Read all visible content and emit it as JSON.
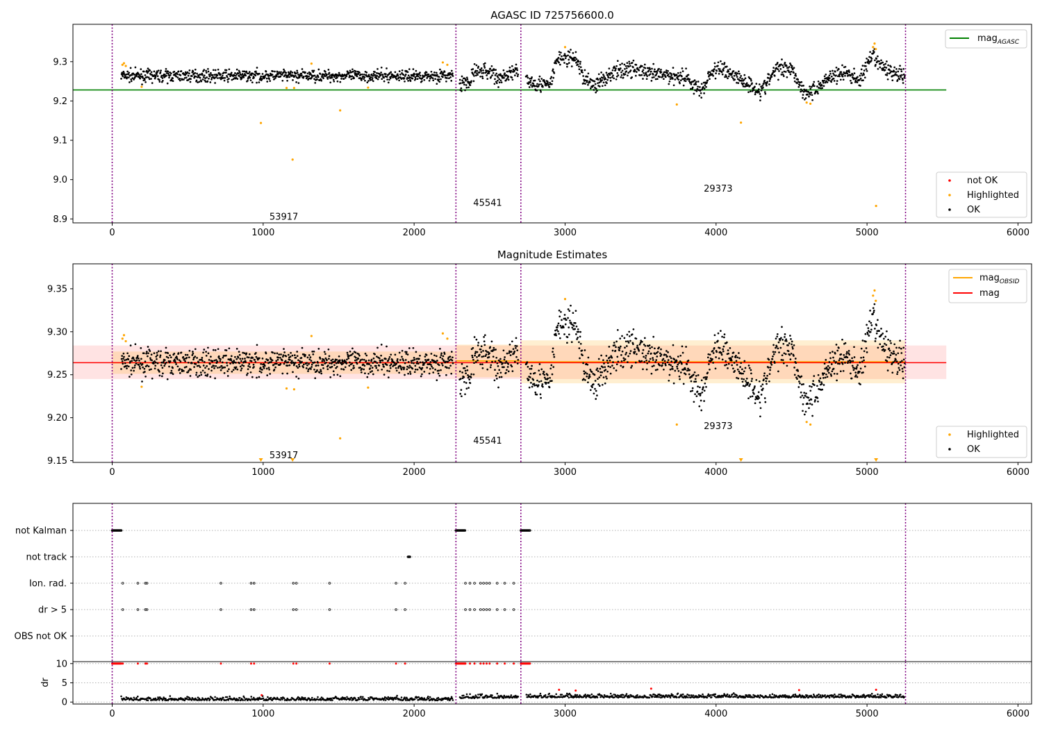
{
  "chart_data": [
    {
      "type": "scatter",
      "title": "AGASC ID 725756600.0",
      "xlim": [
        -260,
        6090
      ],
      "ylim": [
        8.89,
        9.395
      ],
      "xticks": [
        "0",
        "1000",
        "2000",
        "3000",
        "4000",
        "5000",
        "6000"
      ],
      "yticks": [
        "8.9",
        "9.0",
        "9.1",
        "9.2",
        "9.3"
      ],
      "observation_boundaries": [
        0,
        2277,
        2707,
        5255
      ],
      "observation_labels": [
        {
          "text": "53917",
          "x": 1137,
          "y": 8.907
        },
        {
          "text": "45541",
          "x": 2487,
          "y": 8.942
        },
        {
          "text": "29373",
          "x": 4014,
          "y": 8.978
        }
      ],
      "reference_line": {
        "name": "mag",
        "subscript": "AGASC",
        "value": 9.228,
        "x_range": [
          -260,
          5525
        ],
        "color": "#008000"
      },
      "legend_upper": {
        "position": "upper right",
        "entries": [
          {
            "label": "mag",
            "subscript": "AGASC",
            "color": "#008000"
          }
        ]
      },
      "legend_lower": {
        "position": "lower right",
        "entries": [
          {
            "label": "not OK",
            "color": "#ff0000"
          },
          {
            "label": "Highlighted",
            "color": "#ffa500"
          },
          {
            "label": "OK",
            "color": "#000000"
          }
        ]
      },
      "highlighted_points": [
        {
          "x": 68,
          "y": 9.292
        },
        {
          "x": 78,
          "y": 9.296
        },
        {
          "x": 90,
          "y": 9.289
        },
        {
          "x": 195,
          "y": 9.236
        },
        {
          "x": 985,
          "y": 9.144
        },
        {
          "x": 1155,
          "y": 9.233
        },
        {
          "x": 1195,
          "y": 9.051
        },
        {
          "x": 1205,
          "y": 9.233
        },
        {
          "x": 1320,
          "y": 9.295
        },
        {
          "x": 1510,
          "y": 9.176
        },
        {
          "x": 1695,
          "y": 9.234
        },
        {
          "x": 2190,
          "y": 9.298
        },
        {
          "x": 2220,
          "y": 9.292
        },
        {
          "x": 3000,
          "y": 9.337
        },
        {
          "x": 3740,
          "y": 9.191
        },
        {
          "x": 4165,
          "y": 9.145
        },
        {
          "x": 4600,
          "y": 9.196
        },
        {
          "x": 4625,
          "y": 9.193
        },
        {
          "x": 5040,
          "y": 9.337
        },
        {
          "x": 5050,
          "y": 9.346
        },
        {
          "x": 5058,
          "y": 9.332
        },
        {
          "x": 5060,
          "y": 8.933
        }
      ]
    },
    {
      "type": "scatter",
      "title": "Magnitude Estimates",
      "xlim": [
        -260,
        6090
      ],
      "ylim": [
        9.148,
        9.379
      ],
      "xticks": [
        "0",
        "1000",
        "2000",
        "3000",
        "4000",
        "5000",
        "6000"
      ],
      "yticks": [
        "9.15",
        "9.20",
        "9.25",
        "9.30",
        "9.35"
      ],
      "observation_boundaries": [
        0,
        2277,
        2707,
        5255
      ],
      "observation_labels": [
        {
          "text": "53917",
          "x": 1137,
          "y": 9.157
        },
        {
          "text": "45541",
          "x": 2487,
          "y": 9.174
        },
        {
          "text": "29373",
          "x": 4014,
          "y": 9.191
        }
      ],
      "mean_line": {
        "name": "mag",
        "value": 9.264,
        "band": [
          9.245,
          9.284
        ],
        "x_range": [
          -260,
          5525
        ],
        "color": "#ff0000"
      },
      "obsid_mag_segments": [
        {
          "x_range": [
            0,
            2277
          ],
          "value": 9.264,
          "band": [
            9.251,
            9.277
          ]
        },
        {
          "x_range": [
            2277,
            2707
          ],
          "value": 9.266,
          "band": [
            9.247,
            9.285
          ]
        },
        {
          "x_range": [
            2707,
            5255
          ],
          "value": 9.265,
          "band": [
            9.24,
            9.29
          ]
        }
      ],
      "legend_upper": {
        "position": "upper right",
        "entries": [
          {
            "label": "mag",
            "subscript": "OBSID",
            "color": "#ffa500"
          },
          {
            "label": "mag",
            "color": "#ff0000"
          }
        ]
      },
      "legend_lower": {
        "position": "lower right",
        "entries": [
          {
            "label": "Highlighted",
            "color": "#ffa500"
          },
          {
            "label": "OK",
            "color": "#000000"
          }
        ]
      },
      "highlighted_points": [
        {
          "x": 68,
          "y": 9.292
        },
        {
          "x": 78,
          "y": 9.296
        },
        {
          "x": 90,
          "y": 9.289
        },
        {
          "x": 195,
          "y": 9.236
        },
        {
          "x": 1155,
          "y": 9.234
        },
        {
          "x": 1205,
          "y": 9.233
        },
        {
          "x": 1320,
          "y": 9.295
        },
        {
          "x": 1510,
          "y": 9.176
        },
        {
          "x": 1695,
          "y": 9.235
        },
        {
          "x": 2190,
          "y": 9.298
        },
        {
          "x": 2220,
          "y": 9.292
        },
        {
          "x": 3000,
          "y": 9.338
        },
        {
          "x": 3740,
          "y": 9.192
        },
        {
          "x": 4600,
          "y": 9.195
        },
        {
          "x": 4625,
          "y": 9.192
        },
        {
          "x": 5040,
          "y": 9.342
        },
        {
          "x": 5050,
          "y": 9.348
        },
        {
          "x": 5058,
          "y": 9.336
        }
      ],
      "clipped_points_x": [
        985,
        1195,
        4165,
        5060
      ]
    },
    {
      "type": "scatter",
      "title": "",
      "xlim": [
        -260,
        6090
      ],
      "xticks": [
        "0",
        "1000",
        "2000",
        "3000",
        "4000",
        "5000",
        "6000"
      ],
      "flag_rows": [
        "not Kalman",
        "not track",
        "Ion. rad.",
        "dr > 5",
        "OBS not OK"
      ],
      "observation_boundaries": [
        0,
        2277,
        2707,
        5255
      ],
      "flags": {
        "not Kalman": [
          [
            0,
            60
          ],
          [
            2277,
            2340
          ],
          [
            2707,
            2770
          ]
        ],
        "not track": [
          [
            1960,
            1975
          ]
        ],
        "Ion. rad.": [
          70,
          170,
          220,
          230,
          720,
          920,
          940,
          1200,
          1220,
          1440,
          1880,
          1940,
          2340,
          2370,
          2400,
          2440,
          2460,
          2480,
          2500,
          2550,
          2600,
          2660
        ],
        "dr > 5": [
          70,
          170,
          220,
          230,
          720,
          920,
          940,
          1200,
          1220,
          1440,
          1880,
          1940,
          2340,
          2370,
          2400,
          2440,
          2460,
          2480,
          2500,
          2550,
          2600,
          2660
        ],
        "OBS not OK": []
      },
      "dr_axis": {
        "ylabel": "dr",
        "ylim": [
          -0.5,
          10.5
        ],
        "yticks": [
          "0",
          "5",
          "10"
        ],
        "dr_limit": 10
      },
      "dr_spike_points": [
        {
          "x": 990,
          "y": 1.8
        },
        {
          "x": 2960,
          "y": 3.2
        },
        {
          "x": 3070,
          "y": 3.0
        },
        {
          "x": 3570,
          "y": 3.5
        },
        {
          "x": 4550,
          "y": 3.1
        },
        {
          "x": 5060,
          "y": 3.2
        }
      ]
    }
  ]
}
